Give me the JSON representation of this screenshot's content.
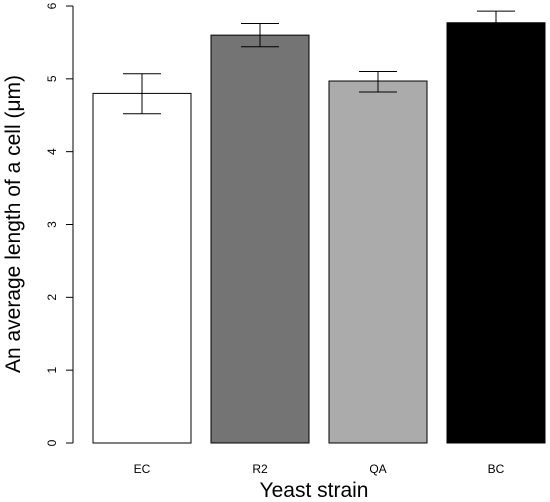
{
  "chart_data": {
    "type": "bar",
    "title": "",
    "xlabel": "Yeast strain",
    "ylabel": "An average length of a cell (μm)",
    "ylim": [
      0,
      6
    ],
    "yticks": [
      "0",
      "1",
      "2",
      "3",
      "4",
      "5",
      "6"
    ],
    "grid": false,
    "legend": "none",
    "categories": [
      "EC",
      "R2",
      "QA",
      "BC"
    ],
    "values": [
      4.8,
      5.6,
      4.97,
      5.77
    ],
    "error_low": [
      4.52,
      5.44,
      4.82,
      5.6
    ],
    "error_high": [
      5.07,
      5.76,
      5.1,
      5.93
    ],
    "colors": [
      "#ffffff",
      "#747474",
      "#ababab",
      "#000000"
    ]
  }
}
